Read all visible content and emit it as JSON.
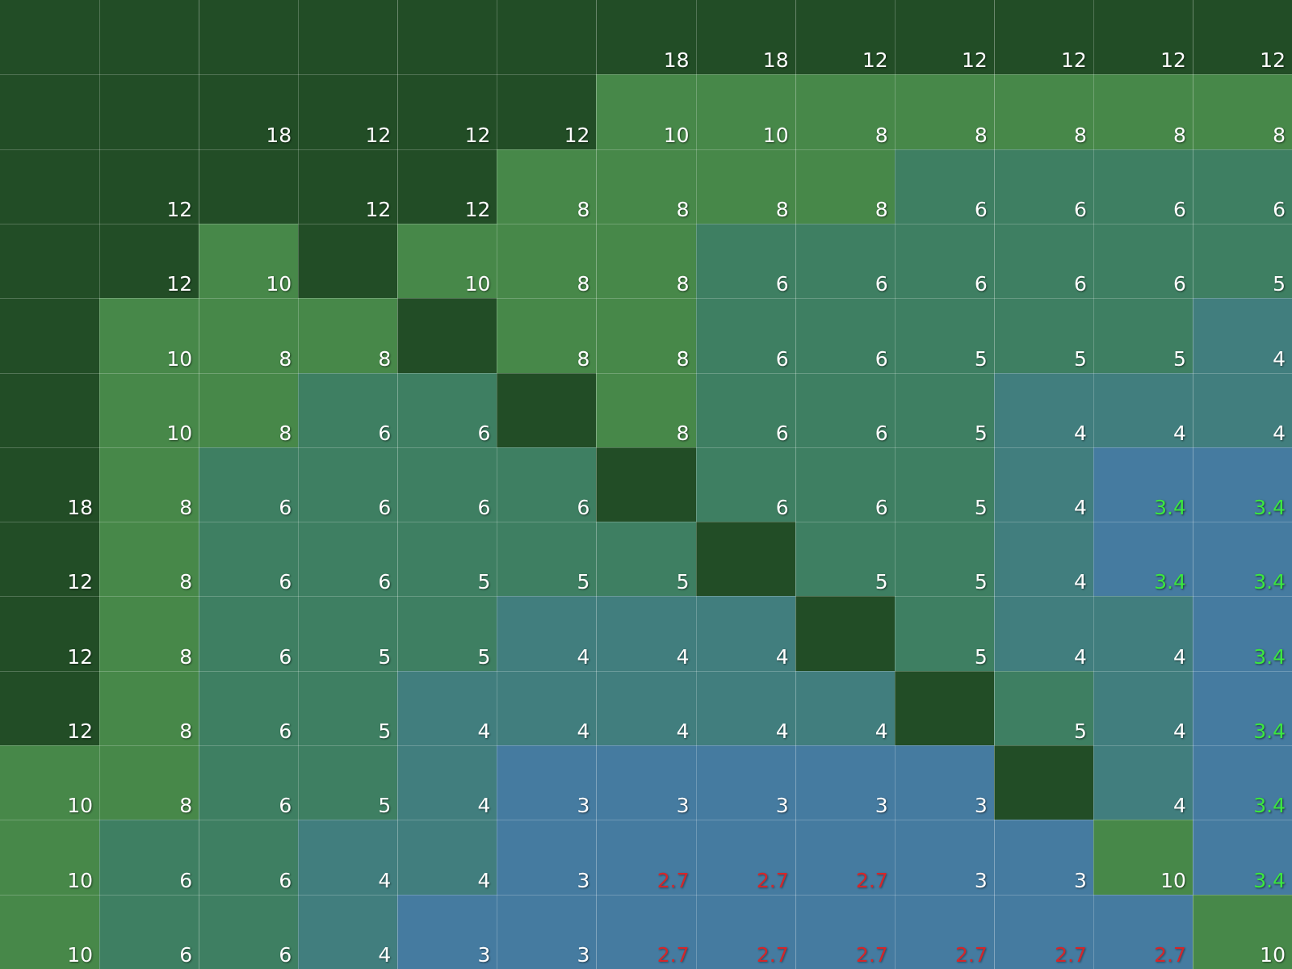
{
  "colors": {
    "dark": "#224d26",
    "green": "#478849",
    "teal": "#3e7f62",
    "slate": "#417e7e",
    "blue": "#457ba0",
    "text_white": "#ffffff",
    "text_green": "#3be73f",
    "text_red": "#d4262a"
  },
  "grid": {
    "rows": [
      {
        "cells": [
          {
            "t": "",
            "c": "dark"
          },
          {
            "t": "",
            "c": "dark"
          },
          {
            "t": "",
            "c": "dark"
          },
          {
            "t": "",
            "c": "dark"
          },
          {
            "t": "",
            "c": "dark"
          },
          {
            "t": "",
            "c": "dark"
          },
          {
            "t": "18",
            "c": "dark"
          },
          {
            "t": "18",
            "c": "dark"
          },
          {
            "t": "12",
            "c": "dark"
          },
          {
            "t": "12",
            "c": "dark"
          },
          {
            "t": "12",
            "c": "dark"
          },
          {
            "t": "12",
            "c": "dark"
          },
          {
            "t": "12",
            "c": "dark"
          }
        ]
      },
      {
        "cells": [
          {
            "t": "",
            "c": "dark"
          },
          {
            "t": "",
            "c": "dark"
          },
          {
            "t": "18",
            "c": "dark"
          },
          {
            "t": "12",
            "c": "dark"
          },
          {
            "t": "12",
            "c": "dark"
          },
          {
            "t": "12",
            "c": "dark"
          },
          {
            "t": "10",
            "c": "green"
          },
          {
            "t": "10",
            "c": "green"
          },
          {
            "t": "8",
            "c": "green"
          },
          {
            "t": "8",
            "c": "green"
          },
          {
            "t": "8",
            "c": "green"
          },
          {
            "t": "8",
            "c": "green"
          },
          {
            "t": "8",
            "c": "green"
          }
        ]
      },
      {
        "cells": [
          {
            "t": "",
            "c": "dark"
          },
          {
            "t": "12",
            "c": "dark"
          },
          {
            "t": "",
            "c": "dark"
          },
          {
            "t": "12",
            "c": "dark"
          },
          {
            "t": "12",
            "c": "dark"
          },
          {
            "t": "8",
            "c": "green"
          },
          {
            "t": "8",
            "c": "green"
          },
          {
            "t": "8",
            "c": "green"
          },
          {
            "t": "8",
            "c": "green"
          },
          {
            "t": "6",
            "c": "teal"
          },
          {
            "t": "6",
            "c": "teal"
          },
          {
            "t": "6",
            "c": "teal"
          },
          {
            "t": "6",
            "c": "teal"
          }
        ]
      },
      {
        "cells": [
          {
            "t": "",
            "c": "dark"
          },
          {
            "t": "12",
            "c": "dark"
          },
          {
            "t": "10",
            "c": "green"
          },
          {
            "t": "",
            "c": "dark"
          },
          {
            "t": "10",
            "c": "green"
          },
          {
            "t": "8",
            "c": "green"
          },
          {
            "t": "8",
            "c": "green"
          },
          {
            "t": "6",
            "c": "teal"
          },
          {
            "t": "6",
            "c": "teal"
          },
          {
            "t": "6",
            "c": "teal"
          },
          {
            "t": "6",
            "c": "teal"
          },
          {
            "t": "6",
            "c": "teal"
          },
          {
            "t": "5",
            "c": "teal"
          }
        ]
      },
      {
        "cells": [
          {
            "t": "",
            "c": "dark"
          },
          {
            "t": "10",
            "c": "green"
          },
          {
            "t": "8",
            "c": "green"
          },
          {
            "t": "8",
            "c": "green"
          },
          {
            "t": "",
            "c": "dark"
          },
          {
            "t": "8",
            "c": "green"
          },
          {
            "t": "8",
            "c": "green"
          },
          {
            "t": "6",
            "c": "teal"
          },
          {
            "t": "6",
            "c": "teal"
          },
          {
            "t": "5",
            "c": "teal"
          },
          {
            "t": "5",
            "c": "teal"
          },
          {
            "t": "5",
            "c": "teal"
          },
          {
            "t": "4",
            "c": "slate"
          }
        ]
      },
      {
        "cells": [
          {
            "t": "",
            "c": "dark"
          },
          {
            "t": "10",
            "c": "green"
          },
          {
            "t": "8",
            "c": "green"
          },
          {
            "t": "6",
            "c": "teal"
          },
          {
            "t": "6",
            "c": "teal"
          },
          {
            "t": "",
            "c": "dark"
          },
          {
            "t": "8",
            "c": "green"
          },
          {
            "t": "6",
            "c": "teal"
          },
          {
            "t": "6",
            "c": "teal"
          },
          {
            "t": "5",
            "c": "teal"
          },
          {
            "t": "4",
            "c": "slate"
          },
          {
            "t": "4",
            "c": "slate"
          },
          {
            "t": "4",
            "c": "slate"
          }
        ]
      },
      {
        "cells": [
          {
            "t": "18",
            "c": "dark"
          },
          {
            "t": "8",
            "c": "green"
          },
          {
            "t": "6",
            "c": "teal"
          },
          {
            "t": "6",
            "c": "teal"
          },
          {
            "t": "6",
            "c": "teal"
          },
          {
            "t": "6",
            "c": "teal"
          },
          {
            "t": "",
            "c": "dark"
          },
          {
            "t": "6",
            "c": "teal"
          },
          {
            "t": "6",
            "c": "teal"
          },
          {
            "t": "5",
            "c": "teal"
          },
          {
            "t": "4",
            "c": "slate"
          },
          {
            "t": "3.4",
            "c": "blue",
            "tc": "green"
          },
          {
            "t": "3.4",
            "c": "blue",
            "tc": "green"
          }
        ]
      },
      {
        "cells": [
          {
            "t": "12",
            "c": "dark"
          },
          {
            "t": "8",
            "c": "green"
          },
          {
            "t": "6",
            "c": "teal"
          },
          {
            "t": "6",
            "c": "teal"
          },
          {
            "t": "5",
            "c": "teal"
          },
          {
            "t": "5",
            "c": "teal"
          },
          {
            "t": "5",
            "c": "teal"
          },
          {
            "t": "",
            "c": "dark"
          },
          {
            "t": "5",
            "c": "teal"
          },
          {
            "t": "5",
            "c": "teal"
          },
          {
            "t": "4",
            "c": "slate"
          },
          {
            "t": "3.4",
            "c": "blue",
            "tc": "green"
          },
          {
            "t": "3.4",
            "c": "blue",
            "tc": "green"
          }
        ]
      },
      {
        "cells": [
          {
            "t": "12",
            "c": "dark"
          },
          {
            "t": "8",
            "c": "green"
          },
          {
            "t": "6",
            "c": "teal"
          },
          {
            "t": "5",
            "c": "teal"
          },
          {
            "t": "5",
            "c": "teal"
          },
          {
            "t": "4",
            "c": "slate"
          },
          {
            "t": "4",
            "c": "slate"
          },
          {
            "t": "4",
            "c": "slate"
          },
          {
            "t": "",
            "c": "dark"
          },
          {
            "t": "5",
            "c": "teal"
          },
          {
            "t": "4",
            "c": "slate"
          },
          {
            "t": "4",
            "c": "slate"
          },
          {
            "t": "3.4",
            "c": "blue",
            "tc": "green"
          }
        ]
      },
      {
        "cells": [
          {
            "t": "12",
            "c": "dark"
          },
          {
            "t": "8",
            "c": "green"
          },
          {
            "t": "6",
            "c": "teal"
          },
          {
            "t": "5",
            "c": "teal"
          },
          {
            "t": "4",
            "c": "slate"
          },
          {
            "t": "4",
            "c": "slate"
          },
          {
            "t": "4",
            "c": "slate"
          },
          {
            "t": "4",
            "c": "slate"
          },
          {
            "t": "4",
            "c": "slate"
          },
          {
            "t": "",
            "c": "dark"
          },
          {
            "t": "5",
            "c": "teal"
          },
          {
            "t": "4",
            "c": "slate"
          },
          {
            "t": "3.4",
            "c": "blue",
            "tc": "green"
          }
        ]
      },
      {
        "cells": [
          {
            "t": "10",
            "c": "green"
          },
          {
            "t": "8",
            "c": "green"
          },
          {
            "t": "6",
            "c": "teal"
          },
          {
            "t": "5",
            "c": "teal"
          },
          {
            "t": "4",
            "c": "slate"
          },
          {
            "t": "3",
            "c": "blue"
          },
          {
            "t": "3",
            "c": "blue"
          },
          {
            "t": "3",
            "c": "blue"
          },
          {
            "t": "3",
            "c": "blue"
          },
          {
            "t": "3",
            "c": "blue"
          },
          {
            "t": "",
            "c": "dark"
          },
          {
            "t": "4",
            "c": "slate"
          },
          {
            "t": "3.4",
            "c": "blue",
            "tc": "green"
          }
        ]
      },
      {
        "cells": [
          {
            "t": "10",
            "c": "green"
          },
          {
            "t": "6",
            "c": "teal"
          },
          {
            "t": "6",
            "c": "teal"
          },
          {
            "t": "4",
            "c": "slate"
          },
          {
            "t": "4",
            "c": "slate"
          },
          {
            "t": "3",
            "c": "blue"
          },
          {
            "t": "2.7",
            "c": "blue",
            "tc": "red"
          },
          {
            "t": "2.7",
            "c": "blue",
            "tc": "red"
          },
          {
            "t": "2.7",
            "c": "blue",
            "tc": "red"
          },
          {
            "t": "3",
            "c": "blue"
          },
          {
            "t": "3",
            "c": "blue"
          },
          {
            "t": "10",
            "c": "green"
          },
          {
            "t": "3.4",
            "c": "blue",
            "tc": "green"
          }
        ]
      },
      {
        "cells": [
          {
            "t": "10",
            "c": "green"
          },
          {
            "t": "6",
            "c": "teal"
          },
          {
            "t": "6",
            "c": "teal"
          },
          {
            "t": "4",
            "c": "slate"
          },
          {
            "t": "3",
            "c": "blue"
          },
          {
            "t": "3",
            "c": "blue"
          },
          {
            "t": "2.7",
            "c": "blue",
            "tc": "red"
          },
          {
            "t": "2.7",
            "c": "blue",
            "tc": "red"
          },
          {
            "t": "2.7",
            "c": "blue",
            "tc": "red"
          },
          {
            "t": "2.7",
            "c": "blue",
            "tc": "red"
          },
          {
            "t": "2.7",
            "c": "blue",
            "tc": "red"
          },
          {
            "t": "2.7",
            "c": "blue",
            "tc": "red"
          },
          {
            "t": "10",
            "c": "green"
          }
        ]
      }
    ]
  }
}
